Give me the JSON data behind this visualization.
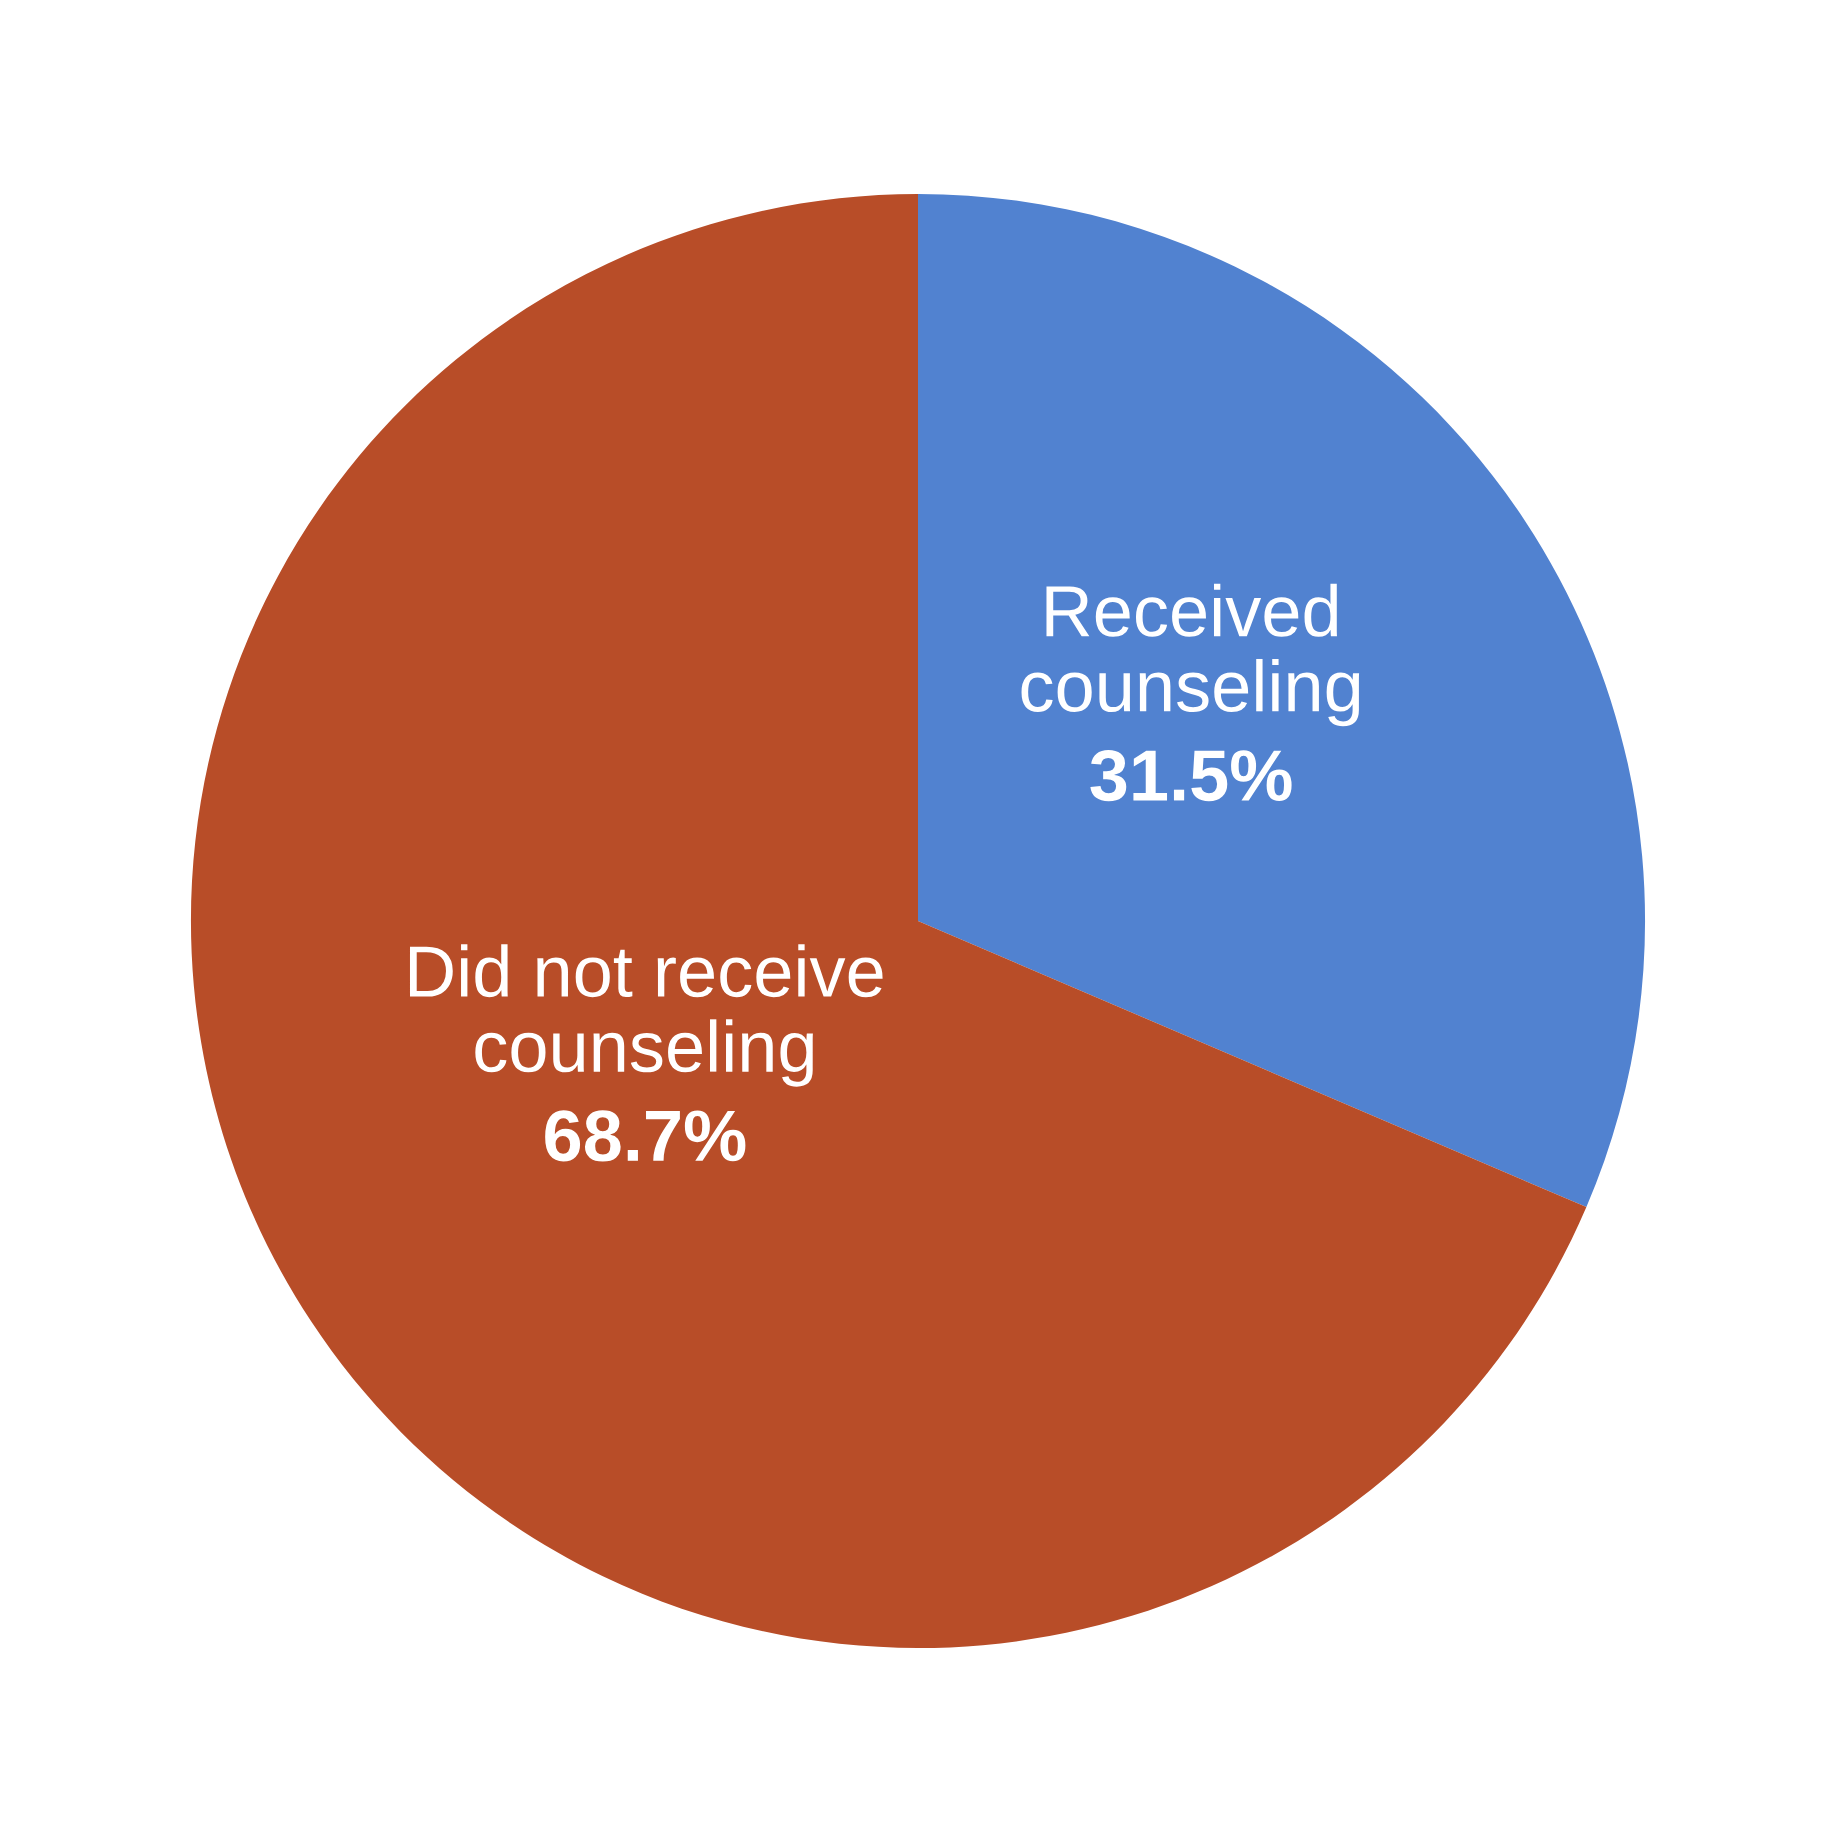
{
  "chart_data": {
    "type": "pie",
    "categories": [
      "Received counseling",
      "Did not receive counseling"
    ],
    "values": [
      31.5,
      68.7
    ],
    "value_labels": [
      "31.5%",
      "68.7%"
    ],
    "colors": [
      "#5182d0",
      "#b84d28"
    ]
  }
}
